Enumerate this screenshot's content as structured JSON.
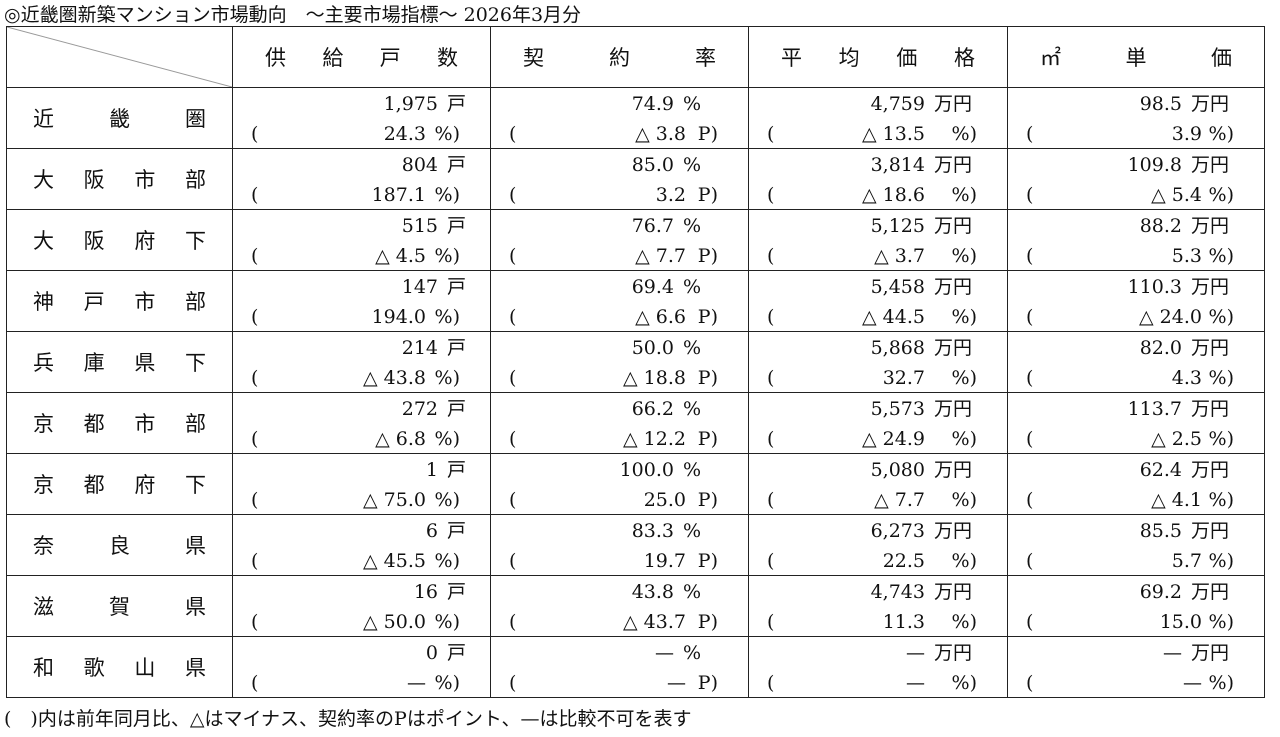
{
  "title": "◎近畿圏新築マンション市場動向　～主要市場指標～ 2026年3月分",
  "headers": [
    "供給戸数",
    "契約率",
    "平均価格",
    "㎡単価"
  ],
  "units": {
    "supply": "戸",
    "contract": "%",
    "price": "万円",
    "unit_price": "万円"
  },
  "yoy_units": {
    "supply": "%)",
    "contract": "P)",
    "price": "%)",
    "unit_price": "%)"
  },
  "open_paren": "(",
  "rows": [
    {
      "region": "近畿圏",
      "supply": "1,975",
      "supply_yoy": "24.3",
      "contract": "74.9",
      "contract_yoy": "△ 3.8",
      "price": "4,759",
      "price_yoy": "△ 13.5",
      "unit": "98.5",
      "unit_yoy": "3.9"
    },
    {
      "region": "大阪市部",
      "supply": "804",
      "supply_yoy": "187.1",
      "contract": "85.0",
      "contract_yoy": "3.2",
      "price": "3,814",
      "price_yoy": "△ 18.6",
      "unit": "109.8",
      "unit_yoy": "△ 5.4"
    },
    {
      "region": "大阪府下",
      "supply": "515",
      "supply_yoy": "△ 4.5",
      "contract": "76.7",
      "contract_yoy": "△ 7.7",
      "price": "5,125",
      "price_yoy": "△ 3.7",
      "unit": "88.2",
      "unit_yoy": "5.3"
    },
    {
      "region": "神戸市部",
      "supply": "147",
      "supply_yoy": "194.0",
      "contract": "69.4",
      "contract_yoy": "△ 6.6",
      "price": "5,458",
      "price_yoy": "△ 44.5",
      "unit": "110.3",
      "unit_yoy": "△ 24.0"
    },
    {
      "region": "兵庫県下",
      "supply": "214",
      "supply_yoy": "△ 43.8",
      "contract": "50.0",
      "contract_yoy": "△ 18.8",
      "price": "5,868",
      "price_yoy": "32.7",
      "unit": "82.0",
      "unit_yoy": "4.3"
    },
    {
      "region": "京都市部",
      "supply": "272",
      "supply_yoy": "△ 6.8",
      "contract": "66.2",
      "contract_yoy": "△ 12.2",
      "price": "5,573",
      "price_yoy": "△ 24.9",
      "unit": "113.7",
      "unit_yoy": "△ 2.5"
    },
    {
      "region": "京都府下",
      "supply": "1",
      "supply_yoy": "△ 75.0",
      "contract": "100.0",
      "contract_yoy": "25.0",
      "price": "5,080",
      "price_yoy": "△ 7.7",
      "unit": "62.4",
      "unit_yoy": "△ 4.1"
    },
    {
      "region": "奈良県",
      "supply": "6",
      "supply_yoy": "△ 45.5",
      "contract": "83.3",
      "contract_yoy": "19.7",
      "price": "6,273",
      "price_yoy": "22.5",
      "unit": "85.5",
      "unit_yoy": "5.7"
    },
    {
      "region": "滋賀県",
      "supply": "16",
      "supply_yoy": "△ 50.0",
      "contract": "43.8",
      "contract_yoy": "△ 43.7",
      "price": "4,743",
      "price_yoy": "11.3",
      "unit": "69.2",
      "unit_yoy": "15.0"
    },
    {
      "region": "和歌山県",
      "supply": "0",
      "supply_yoy": "—",
      "contract": "—",
      "contract_yoy": "—",
      "price": "—",
      "price_yoy": "—",
      "unit": "—",
      "unit_yoy": "—"
    }
  ],
  "note": "(　)内は前年同月比、△はマイナス、契約率のPはポイント、—は比較不可を表す"
}
